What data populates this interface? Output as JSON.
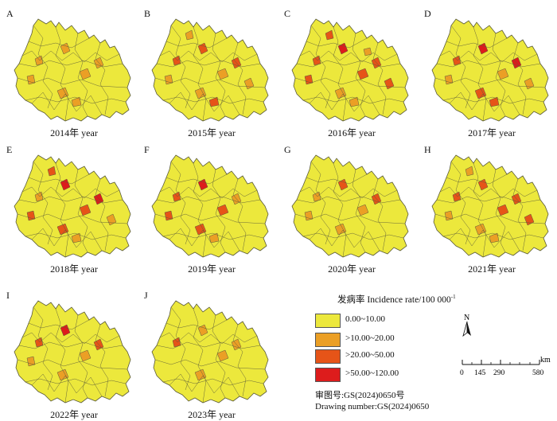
{
  "colors": {
    "class_1": "#ece83c",
    "class_2": "#eb9f25",
    "class_3": "#e65418",
    "class_4": "#dd1c1c",
    "border": "#5a5a3a"
  },
  "panels": [
    {
      "letter": "A",
      "caption": "2014年 year",
      "hotspots": [
        2,
        2,
        2,
        2,
        2,
        2,
        2
      ]
    },
    {
      "letter": "B",
      "caption": "2015年 year",
      "hotspots": [
        3,
        2,
        3,
        2,
        3,
        2,
        3,
        2,
        2
      ]
    },
    {
      "letter": "C",
      "caption": "2016年 year",
      "hotspots": [
        4,
        3,
        3,
        2,
        3,
        3,
        2,
        3,
        3,
        2
      ]
    },
    {
      "letter": "D",
      "caption": "2017年 year",
      "hotspots": [
        4,
        2,
        3,
        3,
        4,
        2,
        3,
        2
      ]
    },
    {
      "letter": "E",
      "caption": "2018年 year",
      "hotspots": [
        4,
        3,
        2,
        3,
        4,
        3,
        2,
        2,
        3
      ]
    },
    {
      "letter": "F",
      "caption": "2019年 year",
      "hotspots": [
        4,
        3,
        3,
        3,
        2,
        3,
        2
      ]
    },
    {
      "letter": "G",
      "caption": "2020年 year",
      "hotspots": [
        3,
        2,
        2,
        2,
        3,
        2
      ]
    },
    {
      "letter": "H",
      "caption": "2021年 year",
      "hotspots": [
        3,
        3,
        3,
        2,
        3,
        2,
        2,
        3,
        2
      ]
    },
    {
      "letter": "I",
      "caption": "2022年 year",
      "hotspots": [
        4,
        2,
        3,
        2,
        3,
        2
      ]
    },
    {
      "letter": "J",
      "caption": "2023年 year",
      "hotspots": [
        2,
        2,
        3,
        2,
        2
      ]
    }
  ],
  "legend": {
    "title": "发病率 Incidence rate/100 000",
    "title_sup": "-1",
    "classes": [
      {
        "label": "0.00~10.00",
        "color_key": "class_1"
      },
      {
        "label": ">10.00~20.00",
        "color_key": "class_2"
      },
      {
        "label": ">20.00~50.00",
        "color_key": "class_3"
      },
      {
        "label": ">50.00~120.00",
        "color_key": "class_4"
      }
    ]
  },
  "north_arrow": {
    "label": "N"
  },
  "scale_bar": {
    "ticks": [
      "0",
      "145",
      "290",
      "580"
    ],
    "unit": "km"
  },
  "review": {
    "line1": "审图号:GS(2024)0650号",
    "line2": "Drawing number:GS(2024)0650"
  }
}
